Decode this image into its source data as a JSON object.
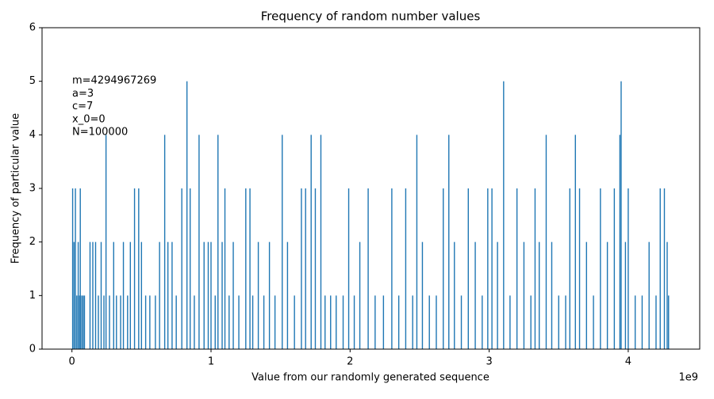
{
  "chart_data": {
    "type": "bar",
    "title": "Frequency of random number values",
    "xlabel": "Value from our randomly generated sequence",
    "ylabel": "Frequency of particular value",
    "x_offset_label": "1e9",
    "annotation": [
      "m=4294967269",
      "a=3",
      "c=7",
      "x_0=0",
      "N=100000"
    ],
    "color": "#1f77b4",
    "xlim": [
      -0.215,
      4.514
    ],
    "xticks": [
      0,
      1,
      2,
      3,
      4
    ],
    "ylim": [
      0,
      6
    ],
    "yticks": [
      0,
      1,
      2,
      3,
      4,
      5,
      6
    ],
    "x": [
      0.005,
      0.015,
      0.025,
      0.035,
      0.045,
      0.055,
      0.06,
      0.07,
      0.08,
      0.09,
      0.13,
      0.15,
      0.17,
      0.19,
      0.21,
      0.23,
      0.245,
      0.27,
      0.3,
      0.32,
      0.35,
      0.37,
      0.4,
      0.42,
      0.45,
      0.48,
      0.5,
      0.53,
      0.56,
      0.6,
      0.63,
      0.667,
      0.69,
      0.72,
      0.75,
      0.79,
      0.827,
      0.85,
      0.88,
      0.914,
      0.95,
      0.98,
      1.0,
      1.03,
      1.05,
      1.08,
      1.1,
      1.13,
      1.16,
      1.2,
      1.25,
      1.28,
      1.3,
      1.34,
      1.38,
      1.42,
      1.46,
      1.512,
      1.55,
      1.6,
      1.65,
      1.68,
      1.72,
      1.75,
      1.79,
      1.82,
      1.86,
      1.9,
      1.95,
      1.99,
      2.03,
      2.07,
      2.13,
      2.18,
      2.24,
      2.3,
      2.35,
      2.4,
      2.45,
      2.48,
      2.52,
      2.57,
      2.62,
      2.67,
      2.71,
      2.75,
      2.8,
      2.85,
      2.9,
      2.95,
      2.99,
      3.02,
      3.06,
      3.104,
      3.15,
      3.2,
      3.25,
      3.3,
      3.33,
      3.36,
      3.41,
      3.45,
      3.5,
      3.55,
      3.58,
      3.62,
      3.65,
      3.7,
      3.75,
      3.8,
      3.85,
      3.9,
      3.94,
      3.949,
      3.98,
      4.0,
      4.05,
      4.1,
      4.15,
      4.2,
      4.23,
      4.26,
      4.28,
      4.29
    ],
    "values": [
      3,
      2,
      3,
      1,
      2,
      1,
      3,
      1,
      1,
      1,
      2,
      2,
      2,
      1,
      2,
      1,
      4,
      1,
      2,
      1,
      1,
      2,
      1,
      2,
      3,
      3,
      2,
      1,
      1,
      1,
      2,
      4,
      2,
      2,
      1,
      3,
      5,
      3,
      1,
      4,
      2,
      2,
      2,
      1,
      4,
      2,
      3,
      1,
      2,
      1,
      3,
      3,
      1,
      2,
      1,
      2,
      1,
      4,
      2,
      1,
      3,
      3,
      4,
      3,
      4,
      1,
      1,
      1,
      1,
      3,
      1,
      2,
      3,
      1,
      1,
      3,
      1,
      3,
      1,
      4,
      2,
      1,
      1,
      3,
      4,
      2,
      1,
      3,
      2,
      1,
      3,
      3,
      2,
      5,
      1,
      3,
      2,
      1,
      3,
      2,
      4,
      2,
      1,
      1,
      3,
      4,
      3,
      2,
      1,
      3,
      2,
      3,
      4,
      5,
      2,
      3,
      1,
      1,
      2,
      1,
      3,
      3,
      2,
      1
    ]
  }
}
